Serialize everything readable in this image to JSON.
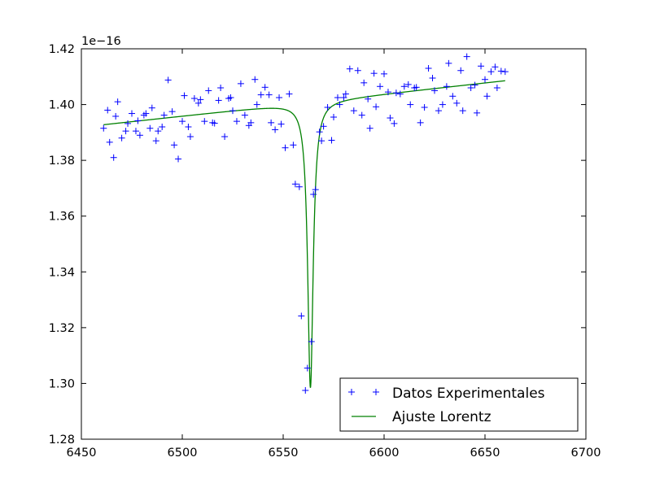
{
  "chart_data": {
    "type": "scatter",
    "title": "",
    "xlabel": "",
    "ylabel": "",
    "offset_text": "1e−16",
    "xlim": [
      6450,
      6700
    ],
    "ylim": [
      1.28,
      1.42
    ],
    "xticks": [
      6450,
      6500,
      6550,
      6600,
      6650,
      6700
    ],
    "yticks": [
      1.28,
      1.3,
      1.32,
      1.34,
      1.36,
      1.38,
      1.4,
      1.42
    ],
    "grid": false,
    "legend_position": "lower-right",
    "series": [
      {
        "name": "Datos Experimentales",
        "kind": "scatter",
        "marker": "+",
        "color": "#0000ff",
        "x": [
          6461,
          6463,
          6464,
          6466,
          6467,
          6468,
          6470,
          6472,
          6473,
          6475,
          6477,
          6478,
          6479,
          6481,
          6482,
          6484,
          6485,
          6487,
          6488,
          6490,
          6491,
          6493,
          6495,
          6496,
          6498,
          6500,
          6501,
          6503,
          6504,
          6506,
          6508,
          6509,
          6511,
          6513,
          6515,
          6516,
          6518,
          6519,
          6521,
          6523,
          6524,
          6525,
          6527,
          6529,
          6531,
          6533,
          6534,
          6536,
          6537,
          6539,
          6541,
          6543,
          6544,
          6546,
          6548,
          6549,
          6551,
          6553,
          6555,
          6556,
          6558,
          6559,
          6561,
          6562,
          6564,
          6565,
          6566,
          6568,
          6569,
          6570,
          6572,
          6574,
          6575,
          6577,
          6578,
          6580,
          6581,
          6583,
          6585,
          6587,
          6589,
          6590,
          6592,
          6593,
          6595,
          6596,
          6598,
          6600,
          6602,
          6603,
          6605,
          6606,
          6608,
          6610,
          6612,
          6613,
          6615,
          6616,
          6618,
          6620,
          6622,
          6624,
          6625,
          6627,
          6629,
          6631,
          6632,
          6634,
          6636,
          6638,
          6639,
          6641,
          6643,
          6645,
          6646,
          6648,
          6650,
          6651,
          6653,
          6655,
          6656,
          6658,
          6660
        ],
        "y": [
          1.3915,
          1.398,
          1.3865,
          1.381,
          1.3958,
          1.401,
          1.388,
          1.3905,
          1.3932,
          1.3968,
          1.3905,
          1.3942,
          1.389,
          1.3962,
          1.3968,
          1.3915,
          1.3988,
          1.387,
          1.3905,
          1.392,
          1.3962,
          1.4088,
          1.3975,
          1.3855,
          1.3805,
          1.394,
          1.4032,
          1.392,
          1.3885,
          1.4022,
          1.4005,
          1.4018,
          1.394,
          1.405,
          1.3935,
          1.3933,
          1.4015,
          1.406,
          1.3885,
          1.4022,
          1.4025,
          1.3978,
          1.394,
          1.4075,
          1.3962,
          1.3925,
          1.3935,
          1.409,
          1.4,
          1.4035,
          1.4062,
          1.4035,
          1.3935,
          1.391,
          1.4025,
          1.393,
          1.3845,
          1.4038,
          1.3855,
          1.3715,
          1.3705,
          1.3242,
          1.2975,
          1.3055,
          1.315,
          1.3678,
          1.3695,
          1.3902,
          1.387,
          1.3922,
          1.399,
          1.3872,
          1.3955,
          1.4025,
          1.4,
          1.4025,
          1.4038,
          1.4128,
          1.3978,
          1.4122,
          1.3962,
          1.4078,
          1.402,
          1.3915,
          1.4112,
          1.3992,
          1.4065,
          1.411,
          1.4045,
          1.3952,
          1.3932,
          1.4042,
          1.4038,
          1.4065,
          1.4072,
          1.4,
          1.406,
          1.4062,
          1.3935,
          1.399,
          1.413,
          1.4095,
          1.405,
          1.3978,
          1.4,
          1.4065,
          1.4148,
          1.403,
          1.4005,
          1.4122,
          1.3978,
          1.4172,
          1.406,
          1.407,
          1.397,
          1.4138,
          1.409,
          1.403,
          1.4118,
          1.4135,
          1.406,
          1.412,
          1.4118
        ]
      },
      {
        "name": "Ajuste Lorentz",
        "kind": "line",
        "color": "#008000",
        "model": "lorentzian",
        "x_range": [
          6461,
          6660
        ],
        "baseline_at_x_min": 1.3928,
        "baseline_slope_per_unit": 7.93e-05,
        "center": 6563.5,
        "half_width": 1.65,
        "depth": 0.1025
      }
    ]
  }
}
